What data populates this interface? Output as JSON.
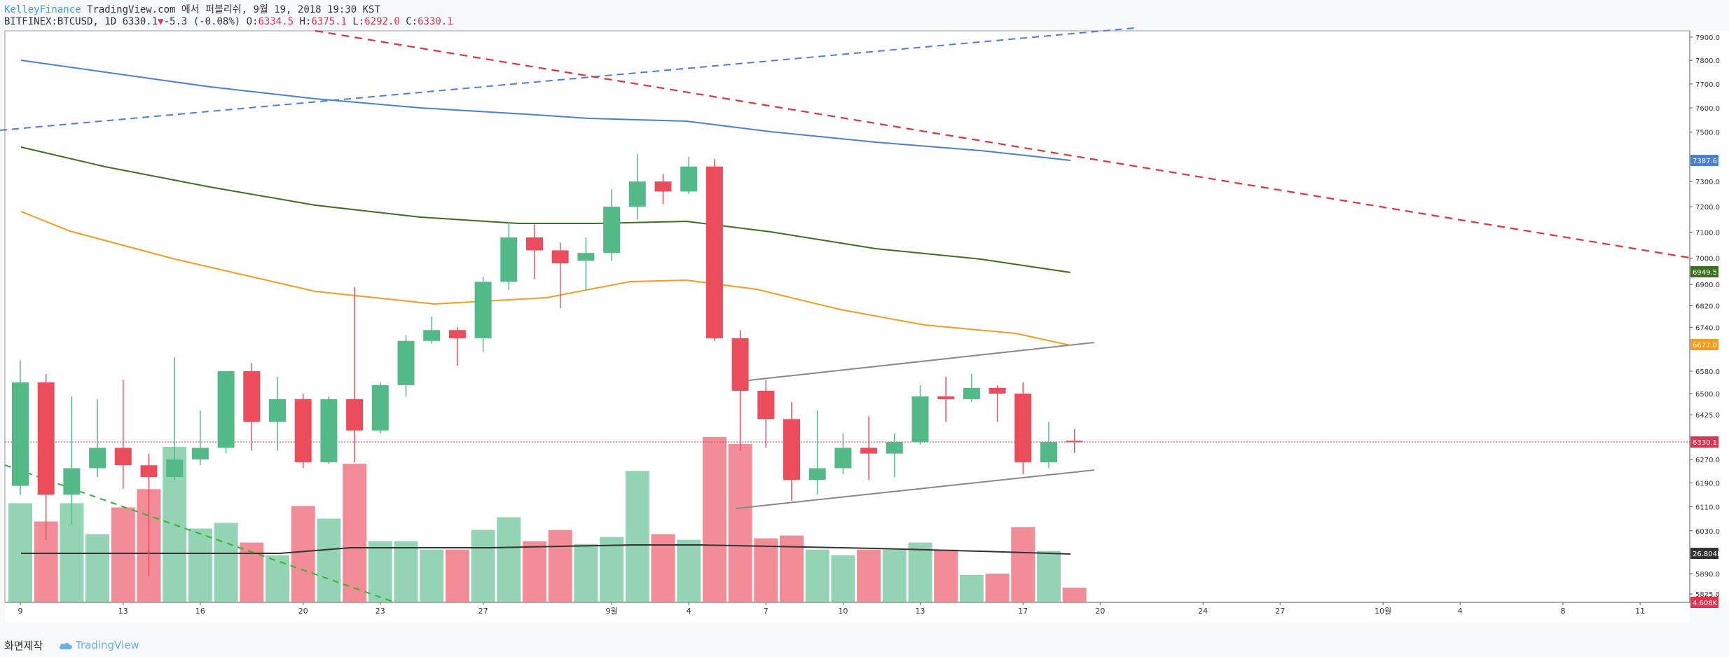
{
  "header": {
    "author": "KelleyFinance",
    "published": "TradingView.com 에서 퍼블리쉬, 9월 19, 2018 19:30 KST",
    "symbol": "BITFINEX:BTCUSD, 1D",
    "last": "6330.1",
    "change": "-5.3 (-0.08%)",
    "open_label": "O:",
    "open": "6334.5",
    "high_label": "H:",
    "high": "6375.1",
    "low_label": "L:",
    "low": "6292.0",
    "close_label": "C:",
    "close": "6330.1"
  },
  "footer": {
    "credit": "화면제작",
    "brand": "TradingView"
  },
  "chart_data": {
    "type": "candlestick",
    "symbol": "BITFINEX:BTCUSD",
    "interval": "1D",
    "price_axis": {
      "ticks": [
        "7900.0",
        "7800.0",
        "7700.0",
        "7600.0",
        "7500.0",
        "7387.6",
        "7300.0",
        "7200.0",
        "7100.0",
        "7000.0",
        "6949.5",
        "6900.0",
        "6820.0",
        "6740.0",
        "6677.0",
        "6580.0",
        "6500.0",
        "6425.0",
        "6330.1",
        "6270.0",
        "6190.0",
        "6110.0",
        "6030.0",
        "26.804K",
        "5890.0",
        "5825.0",
        "4.608K"
      ],
      "scale": "log"
    },
    "time_axis": {
      "ticks": [
        {
          "label": "9",
          "date": "2018-08-09"
        },
        {
          "label": "13",
          "date": "2018-08-13"
        },
        {
          "label": "16",
          "date": "2018-08-16"
        },
        {
          "label": "20",
          "date": "2018-08-20"
        },
        {
          "label": "23",
          "date": "2018-08-23"
        },
        {
          "label": "27",
          "date": "2018-08-27"
        },
        {
          "label": "9월",
          "date": "2018-09-01"
        },
        {
          "label": "4",
          "date": "2018-09-04"
        },
        {
          "label": "7",
          "date": "2018-09-07"
        },
        {
          "label": "10",
          "date": "2018-09-10"
        },
        {
          "label": "13",
          "date": "2018-09-13"
        },
        {
          "label": "17",
          "date": "2018-09-17"
        },
        {
          "label": "20",
          "date": "2018-09-20"
        },
        {
          "label": "24",
          "date": "2018-09-24"
        },
        {
          "label": "27",
          "date": "2018-09-27"
        },
        {
          "label": "10월",
          "date": "2018-10-01"
        },
        {
          "label": "4",
          "date": "2018-10-04"
        },
        {
          "label": "8",
          "date": "2018-10-08"
        },
        {
          "label": "11",
          "date": "2018-10-11"
        }
      ]
    },
    "candles": [
      {
        "date": "2018-08-09",
        "o": 6180,
        "h": 6620,
        "l": 6150,
        "c": 6540,
        "v": "up"
      },
      {
        "date": "2018-08-10",
        "o": 6540,
        "h": 6570,
        "l": 6000,
        "c": 6150,
        "v": "down"
      },
      {
        "date": "2018-08-11",
        "o": 6150,
        "h": 6490,
        "l": 6050,
        "c": 6240,
        "v": "up"
      },
      {
        "date": "2018-08-12",
        "o": 6240,
        "h": 6480,
        "l": 6210,
        "c": 6310,
        "v": "up"
      },
      {
        "date": "2018-08-13",
        "o": 6310,
        "h": 6550,
        "l": 6170,
        "c": 6250,
        "v": "down"
      },
      {
        "date": "2018-08-14",
        "o": 6250,
        "h": 6290,
        "l": 5880,
        "c": 6210,
        "v": "down"
      },
      {
        "date": "2018-08-15",
        "o": 6210,
        "h": 6630,
        "l": 6200,
        "c": 6270,
        "v": "up"
      },
      {
        "date": "2018-08-16",
        "o": 6270,
        "h": 6440,
        "l": 6250,
        "c": 6310,
        "v": "up"
      },
      {
        "date": "2018-08-17",
        "o": 6310,
        "h": 6580,
        "l": 6290,
        "c": 6580,
        "v": "up"
      },
      {
        "date": "2018-08-18",
        "o": 6580,
        "h": 6610,
        "l": 6300,
        "c": 6400,
        "v": "down"
      },
      {
        "date": "2018-08-19",
        "o": 6400,
        "h": 6560,
        "l": 6300,
        "c": 6480,
        "v": "up"
      },
      {
        "date": "2018-08-20",
        "o": 6480,
        "h": 6500,
        "l": 6240,
        "c": 6260,
        "v": "down"
      },
      {
        "date": "2018-08-21",
        "o": 6260,
        "h": 6490,
        "l": 6255,
        "c": 6480,
        "v": "up"
      },
      {
        "date": "2018-08-22",
        "o": 6480,
        "h": 6890,
        "l": 6260,
        "c": 6370,
        "v": "down"
      },
      {
        "date": "2018-08-23",
        "o": 6370,
        "h": 6540,
        "l": 6360,
        "c": 6530,
        "v": "up"
      },
      {
        "date": "2018-08-24",
        "o": 6530,
        "h": 6710,
        "l": 6490,
        "c": 6690,
        "v": "up"
      },
      {
        "date": "2018-08-25",
        "o": 6690,
        "h": 6780,
        "l": 6680,
        "c": 6730,
        "v": "up"
      },
      {
        "date": "2018-08-26",
        "o": 6730,
        "h": 6740,
        "l": 6600,
        "c": 6700,
        "v": "down"
      },
      {
        "date": "2018-08-27",
        "o": 6700,
        "h": 6930,
        "l": 6650,
        "c": 6910,
        "v": "up"
      },
      {
        "date": "2018-08-28",
        "o": 6910,
        "h": 7140,
        "l": 6880,
        "c": 7080,
        "v": "up"
      },
      {
        "date": "2018-08-29",
        "o": 7080,
        "h": 7130,
        "l": 6920,
        "c": 7030,
        "v": "down"
      },
      {
        "date": "2018-08-30",
        "o": 7030,
        "h": 7060,
        "l": 6810,
        "c": 6980,
        "v": "down"
      },
      {
        "date": "2018-08-31",
        "o": 6990,
        "h": 7080,
        "l": 6880,
        "c": 7020,
        "v": "up"
      },
      {
        "date": "2018-09-01",
        "o": 7020,
        "h": 7270,
        "l": 6990,
        "c": 7200,
        "v": "up"
      },
      {
        "date": "2018-09-02",
        "o": 7200,
        "h": 7410,
        "l": 7150,
        "c": 7300,
        "v": "up"
      },
      {
        "date": "2018-09-03",
        "o": 7300,
        "h": 7330,
        "l": 7210,
        "c": 7260,
        "v": "down"
      },
      {
        "date": "2018-09-04",
        "o": 7260,
        "h": 7400,
        "l": 7250,
        "c": 7360,
        "v": "up"
      },
      {
        "date": "2018-09-05",
        "o": 7360,
        "h": 7390,
        "l": 6690,
        "c": 6700,
        "v": "down"
      },
      {
        "date": "2018-09-06",
        "o": 6700,
        "h": 6730,
        "l": 6300,
        "c": 6510,
        "v": "down"
      },
      {
        "date": "2018-09-07",
        "o": 6510,
        "h": 6550,
        "l": 6310,
        "c": 6410,
        "v": "down"
      },
      {
        "date": "2018-09-08",
        "o": 6410,
        "h": 6470,
        "l": 6130,
        "c": 6200,
        "v": "down"
      },
      {
        "date": "2018-09-09",
        "o": 6200,
        "h": 6440,
        "l": 6150,
        "c": 6240,
        "v": "up"
      },
      {
        "date": "2018-09-10",
        "o": 6240,
        "h": 6360,
        "l": 6220,
        "c": 6310,
        "v": "up"
      },
      {
        "date": "2018-09-11",
        "o": 6310,
        "h": 6420,
        "l": 6200,
        "c": 6290,
        "v": "down"
      },
      {
        "date": "2018-09-12",
        "o": 6290,
        "h": 6360,
        "l": 6210,
        "c": 6330,
        "v": "up"
      },
      {
        "date": "2018-09-13",
        "o": 6330,
        "h": 6530,
        "l": 6320,
        "c": 6490,
        "v": "up"
      },
      {
        "date": "2018-09-14",
        "o": 6490,
        "h": 6560,
        "l": 6400,
        "c": 6480,
        "v": "down"
      },
      {
        "date": "2018-09-15",
        "o": 6480,
        "h": 6570,
        "l": 6470,
        "c": 6520,
        "v": "up"
      },
      {
        "date": "2018-09-16",
        "o": 6520,
        "h": 6530,
        "l": 6400,
        "c": 6500,
        "v": "down"
      },
      {
        "date": "2018-09-17",
        "o": 6500,
        "h": 6540,
        "l": 6220,
        "c": 6260,
        "v": "down"
      },
      {
        "date": "2018-09-18",
        "o": 6260,
        "h": 6400,
        "l": 6240,
        "c": 6330,
        "v": "up"
      },
      {
        "date": "2018-09-19",
        "o": 6334.5,
        "h": 6375.1,
        "l": 6292.0,
        "c": 6330.1,
        "v": "down"
      }
    ],
    "volume": [
      0.7,
      0.57,
      0.7,
      0.48,
      0.67,
      0.8,
      1.1,
      0.52,
      0.56,
      0.42,
      0.33,
      0.68,
      0.59,
      0.98,
      0.43,
      0.43,
      0.37,
      0.37,
      0.51,
      0.6,
      0.43,
      0.51,
      0.41,
      0.46,
      0.93,
      0.48,
      0.44,
      1.17,
      1.12,
      0.45,
      0.47,
      0.37,
      0.33,
      0.37,
      0.37,
      0.42,
      0.37,
      0.19,
      0.2,
      0.53,
      0.36,
      0.1
    ],
    "indicators": [
      {
        "type": "moving-average",
        "color": "#4a7fd8",
        "last": "7387.6"
      },
      {
        "type": "moving-average",
        "color": "#3e6e1f",
        "last": "6949.5"
      },
      {
        "type": "moving-average",
        "color": "#f59b21",
        "last": "6677.0"
      },
      {
        "type": "volume-moving-average",
        "color": "#333333",
        "last": "26.804K"
      }
    ],
    "last_volume": "4.608K",
    "colors": {
      "up": "#53b987",
      "down": "#eb4d5c",
      "up_volume": "#94d4b5",
      "down_volume": "#f28c97"
    }
  }
}
